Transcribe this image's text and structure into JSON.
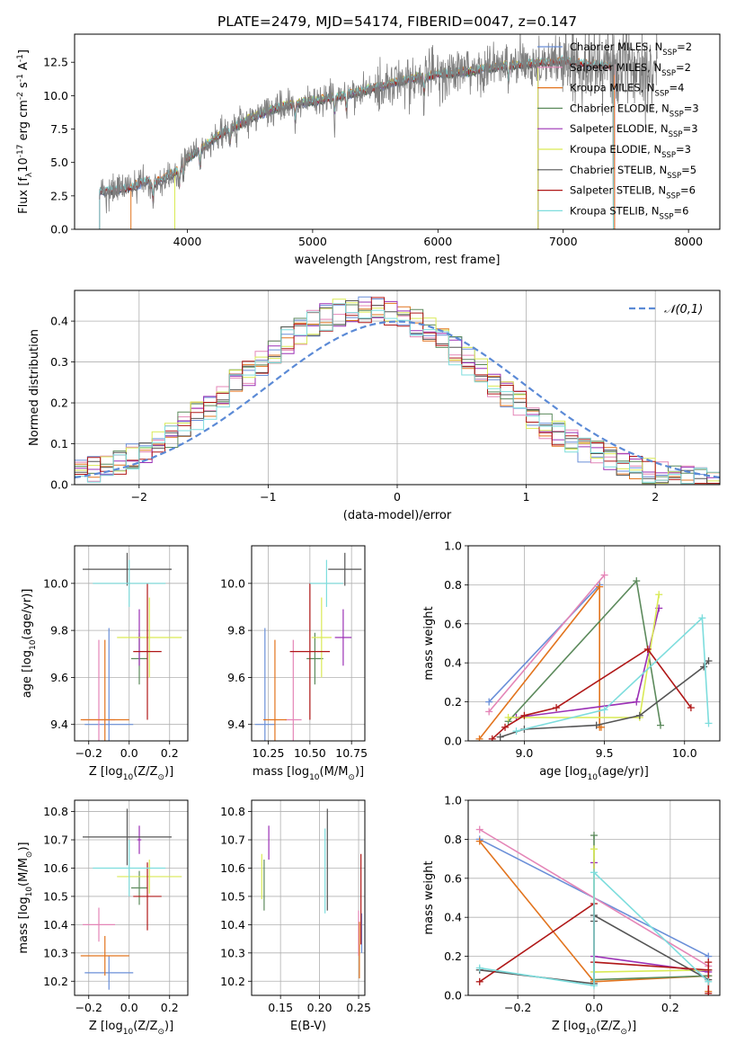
{
  "figure": {
    "title": "PLATE=2479, MJD=54174, FIBERID=0047, z=0.147"
  },
  "colors": {
    "Chabrier MILES": "#6a8fd8",
    "Salpeter MILES": "#e485b7",
    "Kroupa MILES": "#e2741e",
    "Chabrier ELODIE": "#5c8a5c",
    "Salpeter ELODIE": "#9b30b5",
    "Kroupa ELODIE": "#d9ea55",
    "Chabrier STELIB": "#555555",
    "Salpeter STELIB": "#b01818",
    "Kroupa STELIB": "#7ddddd",
    "data": "#7f7f7f"
  },
  "chart_data": [
    {
      "id": "spectrum",
      "type": "line",
      "xlabel": "wavelength [Angstrom, rest frame]",
      "ylabel": "Flux [f$_\\lambda$10$^{-17}$ erg cm$^{-2}$ s$^{-1}$ A$^{-1}$]",
      "xlim": [
        3100,
        8250
      ],
      "ylim": [
        0,
        14.6
      ],
      "xticks": [
        4000,
        5000,
        6000,
        7000,
        8000
      ],
      "yticks": [
        0.0,
        2.5,
        5.0,
        7.5,
        10.0,
        12.5
      ],
      "legend": "top-right",
      "legend_entries": [
        {
          "label": "Chabrier MILES, N",
          "sub": "SSP",
          "tail": "=2"
        },
        {
          "label": "Salpeter MILES, N",
          "sub": "SSP",
          "tail": "=2"
        },
        {
          "label": "Kroupa MILES, N",
          "sub": "SSP",
          "tail": "=4"
        },
        {
          "label": "Chabrier ELODIE, N",
          "sub": "SSP",
          "tail": "=3"
        },
        {
          "label": "Salpeter ELODIE, N",
          "sub": "SSP",
          "tail": "=3"
        },
        {
          "label": "Kroupa ELODIE, N",
          "sub": "SSP",
          "tail": "=3"
        },
        {
          "label": "Chabrier STELIB, N",
          "sub": "SSP",
          "tail": "=5"
        },
        {
          "label": "Salpeter STELIB, N",
          "sub": "SSP",
          "tail": "=6"
        },
        {
          "label": "Kroupa STELIB, N",
          "sub": "SSP",
          "tail": "=6"
        }
      ],
      "continuum": {
        "x": [
          3300,
          3550,
          3800,
          4000,
          4250,
          4500,
          4750,
          5000,
          5250,
          5500,
          5750,
          6000,
          6250,
          6500,
          6750,
          7000,
          7250,
          7400
        ],
        "y": [
          2.8,
          3.1,
          4.2,
          5.3,
          7.0,
          8.3,
          9.2,
          9.6,
          10.0,
          10.6,
          11.2,
          11.6,
          11.8,
          12.2,
          12.4,
          12.6,
          12.3,
          12.2
        ]
      },
      "model_ranges": {
        "Chabrier MILES": [
          3300,
          7410
        ],
        "Salpeter MILES": [
          3300,
          7410
        ],
        "Kroupa MILES": [
          3550,
          7410
        ],
        "Chabrier ELODIE": [
          3900,
          6800
        ],
        "Salpeter ELODIE": [
          3900,
          6800
        ],
        "Kroupa ELODIE": [
          3900,
          6800
        ],
        "Chabrier STELIB": [
          3300,
          7400
        ],
        "Salpeter STELIB": [
          3300,
          7400
        ],
        "Kroupa STELIB": [
          3300,
          7400
        ]
      },
      "data_range": [
        3300,
        7750
      ]
    },
    {
      "id": "residuals",
      "type": "histogram",
      "xlabel": "(data-model)/error",
      "ylabel": "Normed distribution",
      "xlim": [
        -2.5,
        2.5
      ],
      "ylim": [
        0,
        0.475
      ],
      "xticks": [
        -2,
        -1,
        0,
        1,
        2
      ],
      "yticks": [
        0.0,
        0.1,
        0.2,
        0.3,
        0.4
      ],
      "grid": true,
      "legend": "top-right",
      "gaussian_label": "𝒩(0,1)",
      "bin_width": 0.1
    },
    {
      "id": "age_vs_Z",
      "type": "errorbar",
      "xlabel": "Z [log$_{10}$(Z/Z$_\\odot$)]",
      "ylabel": "age  [log$_{10}$(age/yr)]",
      "xlim": [
        -0.27,
        0.29
      ],
      "ylim": [
        9.33,
        10.16
      ],
      "xticks": [
        -0.2,
        0.0,
        0.2
      ],
      "yticks": [
        9.4,
        9.6,
        9.8,
        10.0
      ],
      "grid": true,
      "points": [
        {
          "model": "Chabrier MILES",
          "x": -0.1,
          "xerr": 0.12,
          "y": 9.4,
          "yerr": 0.41
        },
        {
          "model": "Salpeter MILES",
          "x": -0.15,
          "xerr": 0.08,
          "y": 9.42,
          "yerr": 0.34
        },
        {
          "model": "Kroupa MILES",
          "x": -0.12,
          "xerr": 0.12,
          "y": 9.42,
          "yerr": 0.34
        },
        {
          "model": "Chabrier ELODIE",
          "x": 0.05,
          "xerr": 0.04,
          "y": 9.68,
          "yerr": 0.11
        },
        {
          "model": "Salpeter ELODIE",
          "x": 0.05,
          "xerr": 0.01,
          "y": 9.77,
          "yerr": 0.12
        },
        {
          "model": "Kroupa ELODIE",
          "x": 0.1,
          "xerr": 0.16,
          "y": 9.77,
          "yerr": 0.17
        },
        {
          "model": "Chabrier STELIB",
          "x": -0.01,
          "xerr": 0.22,
          "y": 10.06,
          "yerr": 0.07
        },
        {
          "model": "Salpeter STELIB",
          "x": 0.09,
          "xerr": 0.07,
          "y": 9.71,
          "yerr": 0.29
        },
        {
          "model": "Kroupa STELIB",
          "x": 0.0,
          "xerr": 0.18,
          "y": 10.0,
          "yerr": 0.1
        }
      ]
    },
    {
      "id": "age_vs_mass",
      "type": "errorbar",
      "xlabel": "mass [log$_{10}$(M/M$_\\odot$)]",
      "ylabel": "",
      "xlim": [
        10.15,
        10.83
      ],
      "ylim": [
        9.33,
        10.16
      ],
      "xticks": [
        10.25,
        10.5,
        10.75
      ],
      "yticks": [
        9.4,
        9.6,
        9.8,
        10.0
      ],
      "grid": true,
      "points": [
        {
          "model": "Chabrier MILES",
          "x": 10.23,
          "xerr": 0.06,
          "y": 9.4,
          "yerr": 0.41
        },
        {
          "model": "Salpeter MILES",
          "x": 10.4,
          "xerr": 0.05,
          "y": 9.42,
          "yerr": 0.34
        },
        {
          "model": "Kroupa MILES",
          "x": 10.29,
          "xerr": 0.07,
          "y": 9.42,
          "yerr": 0.34
        },
        {
          "model": "Chabrier ELODIE",
          "x": 10.53,
          "xerr": 0.05,
          "y": 9.68,
          "yerr": 0.11
        },
        {
          "model": "Salpeter ELODIE",
          "x": 10.7,
          "xerr": 0.05,
          "y": 9.77,
          "yerr": 0.12
        },
        {
          "model": "Kroupa ELODIE",
          "x": 10.57,
          "xerr": 0.06,
          "y": 9.77,
          "yerr": 0.17
        },
        {
          "model": "Chabrier STELIB",
          "x": 10.71,
          "xerr": 0.1,
          "y": 10.06,
          "yerr": 0.07
        },
        {
          "model": "Salpeter STELIB",
          "x": 10.5,
          "xerr": 0.12,
          "y": 9.71,
          "yerr": 0.29
        },
        {
          "model": "Kroupa STELIB",
          "x": 10.6,
          "xerr": 0.1,
          "y": 10.0,
          "yerr": 0.1
        }
      ]
    },
    {
      "id": "weight_vs_age",
      "type": "line",
      "xlabel": "age  [log$_{10}$(age/yr)]",
      "ylabel": "mass weight",
      "xlim": [
        8.65,
        10.22
      ],
      "ylim": [
        0,
        1.0
      ],
      "xticks": [
        9.0,
        9.5,
        10.0
      ],
      "yticks": [
        0.0,
        0.2,
        0.4,
        0.6,
        0.8,
        1.0
      ],
      "grid": true,
      "series": [
        {
          "model": "Chabrier MILES",
          "x": [
            8.78,
            9.47
          ],
          "y": [
            0.2,
            0.8
          ]
        },
        {
          "model": "Salpeter MILES",
          "x": [
            8.78,
            9.5
          ],
          "y": [
            0.15,
            0.85
          ]
        },
        {
          "model": "Kroupa MILES",
          "x": [
            8.72,
            9.47,
            9.47,
            9.48
          ],
          "y": [
            0.01,
            0.79,
            0.07,
            0.07
          ]
        },
        {
          "model": "Chabrier ELODIE",
          "x": [
            8.9,
            9.7,
            9.85
          ],
          "y": [
            0.1,
            0.82,
            0.08
          ]
        },
        {
          "model": "Salpeter ELODIE",
          "x": [
            8.95,
            9.7,
            9.84
          ],
          "y": [
            0.12,
            0.2,
            0.68
          ]
        },
        {
          "model": "Kroupa ELODIE",
          "x": [
            8.9,
            9.72,
            9.84
          ],
          "y": [
            0.12,
            0.12,
            0.75
          ]
        },
        {
          "model": "Chabrier STELIB",
          "x": [
            8.85,
            9.0,
            9.45,
            9.72,
            10.12,
            10.15
          ],
          "y": [
            0.02,
            0.06,
            0.08,
            0.13,
            0.38,
            0.41
          ]
        },
        {
          "model": "Salpeter STELIB",
          "x": [
            8.8,
            8.88,
            9.0,
            9.2,
            9.77,
            10.04
          ],
          "y": [
            0.01,
            0.07,
            0.13,
            0.17,
            0.47,
            0.17
          ]
        },
        {
          "model": "Kroupa STELIB",
          "x": [
            8.95,
            9.5,
            10.11,
            10.15
          ],
          "y": [
            0.05,
            0.16,
            0.63,
            0.09
          ]
        }
      ]
    },
    {
      "id": "mass_vs_Z",
      "type": "errorbar",
      "xlabel": "Z [log$_{10}$(Z/Z$_\\odot$)]",
      "ylabel": "mass [log$_{10}$(M/M$_\\odot$)]",
      "xlim": [
        -0.27,
        0.29
      ],
      "ylim": [
        10.15,
        10.84
      ],
      "xticks": [
        -0.2,
        0.0,
        0.2
      ],
      "yticks": [
        10.2,
        10.3,
        10.4,
        10.5,
        10.6,
        10.7,
        10.8
      ],
      "grid": true,
      "points": [
        {
          "model": "Chabrier MILES",
          "x": -0.1,
          "xerr": 0.12,
          "y": 10.23,
          "yerr": 0.06
        },
        {
          "model": "Salpeter MILES",
          "x": -0.15,
          "xerr": 0.08,
          "y": 10.4,
          "yerr": 0.06
        },
        {
          "model": "Kroupa MILES",
          "x": -0.12,
          "xerr": 0.12,
          "y": 10.29,
          "yerr": 0.07
        },
        {
          "model": "Chabrier ELODIE",
          "x": 0.05,
          "xerr": 0.04,
          "y": 10.53,
          "yerr": 0.06
        },
        {
          "model": "Salpeter ELODIE",
          "x": 0.05,
          "xerr": 0.01,
          "y": 10.7,
          "yerr": 0.05
        },
        {
          "model": "Kroupa ELODIE",
          "x": 0.1,
          "xerr": 0.16,
          "y": 10.57,
          "yerr": 0.06
        },
        {
          "model": "Chabrier STELIB",
          "x": -0.01,
          "xerr": 0.22,
          "y": 10.71,
          "yerr": 0.1
        },
        {
          "model": "Salpeter STELIB",
          "x": 0.09,
          "xerr": 0.07,
          "y": 10.5,
          "yerr": 0.12
        },
        {
          "model": "Kroupa STELIB",
          "x": 0.0,
          "xerr": 0.18,
          "y": 10.6,
          "yerr": 0.1
        }
      ]
    },
    {
      "id": "mass_vs_ebv",
      "type": "errorbar",
      "xlabel": "E(B-V)",
      "ylabel": "",
      "xlim": [
        0.113,
        0.258
      ],
      "ylim": [
        10.15,
        10.84
      ],
      "xticks": [
        0.15,
        0.2,
        0.25
      ],
      "yticks": [
        10.2,
        10.3,
        10.4,
        10.5,
        10.6,
        10.7,
        10.8
      ],
      "grid": true,
      "points": [
        {
          "model": "Chabrier MILES",
          "x": 0.254,
          "xerr": 0.0,
          "y": 10.37,
          "yerr": 0.07
        },
        {
          "model": "Salpeter MILES",
          "x": 0.25,
          "xerr": 0.0,
          "y": 10.37,
          "yerr": 0.08
        },
        {
          "model": "Kroupa MILES",
          "x": 0.251,
          "xerr": 0.0,
          "y": 10.31,
          "yerr": 0.1
        },
        {
          "model": "Chabrier ELODIE",
          "x": 0.129,
          "xerr": 0.0,
          "y": 10.54,
          "yerr": 0.09
        },
        {
          "model": "Salpeter ELODIE",
          "x": 0.135,
          "xerr": 0.0,
          "y": 10.69,
          "yerr": 0.06
        },
        {
          "model": "Kroupa ELODIE",
          "x": 0.126,
          "xerr": 0.0,
          "y": 10.57,
          "yerr": 0.08
        },
        {
          "model": "Chabrier STELIB",
          "x": 0.21,
          "xerr": 0.0,
          "y": 10.63,
          "yerr": 0.18
        },
        {
          "model": "Salpeter STELIB",
          "x": 0.253,
          "xerr": 0.0,
          "y": 10.49,
          "yerr": 0.16
        },
        {
          "model": "Kroupa STELIB",
          "x": 0.207,
          "xerr": 0.0,
          "y": 10.59,
          "yerr": 0.15
        }
      ]
    },
    {
      "id": "weight_vs_Z",
      "type": "line",
      "xlabel": "Z [log$_{10}$(Z/Z$_\\odot$)]",
      "ylabel": "mass weight",
      "xlim": [
        -0.33,
        0.33
      ],
      "ylim": [
        0,
        1.0
      ],
      "xticks": [
        -0.2,
        0.0,
        0.2
      ],
      "yticks": [
        0.0,
        0.2,
        0.4,
        0.6,
        0.8,
        1.0
      ],
      "grid": true,
      "series": [
        {
          "model": "Chabrier MILES",
          "x": [
            -0.3,
            0.3
          ],
          "y": [
            0.8,
            0.2
          ]
        },
        {
          "model": "Salpeter MILES",
          "x": [
            -0.3,
            0.3
          ],
          "y": [
            0.85,
            0.15
          ]
        },
        {
          "model": "Kroupa MILES",
          "x": [
            -0.3,
            0.0,
            0.3,
            0.3
          ],
          "y": [
            0.79,
            0.07,
            0.1,
            0.02
          ]
        },
        {
          "model": "Chabrier ELODIE",
          "x": [
            0.0,
            0.0,
            0.3
          ],
          "y": [
            0.82,
            0.08,
            0.1
          ]
        },
        {
          "model": "Salpeter ELODIE",
          "x": [
            0.0,
            0.0,
            0.3
          ],
          "y": [
            0.68,
            0.2,
            0.12
          ]
        },
        {
          "model": "Kroupa ELODIE",
          "x": [
            0.0,
            0.0,
            0.3
          ],
          "y": [
            0.75,
            0.12,
            0.13
          ]
        },
        {
          "model": "Chabrier STELIB",
          "x": [
            -0.3,
            0.0,
            0.0,
            0.0,
            0.3,
            0.3
          ],
          "y": [
            0.13,
            0.06,
            0.38,
            0.41,
            0.08,
            0.13
          ]
        },
        {
          "model": "Salpeter STELIB",
          "x": [
            -0.3,
            0.0,
            0.0,
            0.3,
            0.3,
            0.3
          ],
          "y": [
            0.07,
            0.47,
            0.17,
            0.13,
            0.17,
            0.01
          ]
        },
        {
          "model": "Kroupa STELIB",
          "x": [
            -0.3,
            0.0,
            0.0,
            0.3
          ],
          "y": [
            0.14,
            0.05,
            0.63,
            0.07
          ]
        }
      ]
    }
  ]
}
